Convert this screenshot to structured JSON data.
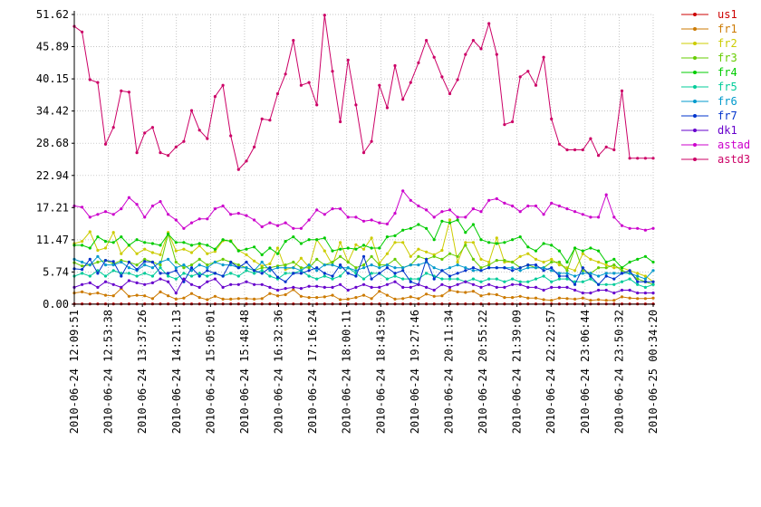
{
  "chart_data": {
    "type": "line",
    "grid": true,
    "legend_position": "right",
    "ylim": [
      0,
      51.62
    ],
    "y_ticks": [
      "0.00",
      "5.74",
      "11.47",
      "17.21",
      "22.94",
      "28.68",
      "34.42",
      "40.15",
      "45.89",
      "51.62"
    ],
    "x_ticks": [
      "2010-06-24 12:09:51",
      "2010-06-24 12:53:38",
      "2010-06-24 13:37:26",
      "2010-06-24 14:21:13",
      "2010-06-24 15:05:01",
      "2010-06-24 15:48:48",
      "2010-06-24 16:32:36",
      "2010-06-24 17:16:24",
      "2010-06-24 18:00:11",
      "2010-06-24 18:43:59",
      "2010-06-24 19:27:46",
      "2010-06-24 20:11:34",
      "2010-06-24 20:55:22",
      "2010-06-24 21:39:09",
      "2010-06-24 22:22:57",
      "2010-06-24 23:06:44",
      "2010-06-24 23:50:32",
      "2010-06-25 00:34:20"
    ],
    "series": [
      {
        "name": "us1",
        "color": "#cc0000",
        "values": [
          0.05,
          0.05,
          0.05,
          0.05,
          0.05,
          0.05,
          0.05,
          0.05,
          0.05,
          0.05,
          0.05,
          0.05,
          0.05,
          0.05,
          0.05,
          0.05,
          0.05,
          0.05,
          0.05,
          0.05,
          0.05,
          0.05,
          0.05,
          0.05,
          0.05,
          0.05,
          0.05,
          0.05,
          0.05,
          0.05,
          0.05,
          0.05,
          0.05,
          0.05,
          0.05,
          0.05,
          0.05,
          0.05,
          0.05,
          0.05,
          0.05,
          0.05,
          0.05,
          0.05,
          0.05,
          0.05,
          0.05,
          0.05,
          0.05,
          0.05,
          0.05,
          0.05,
          0.05,
          0.05,
          0.05,
          0.05,
          0.05,
          0.05,
          0.05,
          0.05,
          0.05,
          0.05,
          0.05,
          0.05,
          0.05,
          0.05,
          0.05,
          0.05,
          0.05,
          0.05,
          0.05,
          0.05,
          0.05,
          0.05,
          0.05
        ]
      },
      {
        "name": "fr1",
        "color": "#cc7a00",
        "values": [
          2.0,
          2.2,
          1.8,
          2.0,
          1.6,
          1.5,
          2.8,
          1.4,
          1.6,
          1.5,
          1.0,
          2.2,
          1.5,
          0.9,
          1.1,
          1.9,
          1.2,
          0.8,
          1.4,
          0.9,
          0.9,
          1.0,
          1.0,
          0.9,
          1.0,
          1.9,
          1.5,
          1.7,
          2.6,
          1.4,
          1.2,
          1.2,
          1.3,
          1.6,
          0.8,
          0.9,
          1.2,
          1.6,
          1.0,
          2.3,
          1.6,
          0.9,
          1.0,
          1.3,
          1.0,
          1.8,
          1.4,
          1.5,
          2.5,
          2.2,
          2.1,
          2.3,
          1.5,
          1.8,
          1.7,
          1.2,
          1.2,
          1.4,
          1.1,
          1.1,
          0.8,
          0.7,
          1.1,
          1.0,
          0.9,
          1.1,
          0.7,
          0.8,
          0.7,
          0.7,
          1.3,
          1.1,
          1.0,
          1.0,
          1.1
        ]
      },
      {
        "name": "fr2",
        "color": "#cccc00",
        "values": [
          10.8,
          11.2,
          12.9,
          9.6,
          10.0,
          12.8,
          9.0,
          10.5,
          9.0,
          9.8,
          9.2,
          8.8,
          12.8,
          9.5,
          9.8,
          9.2,
          10.4,
          9.0,
          9.4,
          11.3,
          11.3,
          9.6,
          8.8,
          7.7,
          6.8,
          7.2,
          10.0,
          6.2,
          6.5,
          8.2,
          6.6,
          11.5,
          9.5,
          7.0,
          11.0,
          7.5,
          10.6,
          9.8,
          11.8,
          7.3,
          9.0,
          11.0,
          11.0,
          8.5,
          9.8,
          9.3,
          8.8,
          9.6,
          15.0,
          7.5,
          11.0,
          11.0,
          8.0,
          7.5,
          11.8,
          7.5,
          7.5,
          8.5,
          9.0,
          8.0,
          7.5,
          8.0,
          7.0,
          6.5,
          6.0,
          9.0,
          8.0,
          7.5,
          7.0,
          6.5,
          6.5,
          6.0,
          5.5,
          5.0,
          4.0
        ]
      },
      {
        "name": "fr3",
        "color": "#66cc00",
        "values": [
          7.4,
          6.8,
          7.0,
          7.5,
          7.8,
          7.2,
          7.8,
          7.5,
          7.0,
          8.0,
          7.5,
          7.0,
          12.5,
          7.5,
          6.5,
          7.0,
          8.0,
          7.0,
          7.5,
          8.0,
          7.5,
          7.0,
          6.5,
          6.0,
          6.5,
          6.5,
          6.8,
          7.0,
          7.5,
          6.5,
          6.5,
          8.0,
          7.0,
          7.5,
          8.5,
          7.5,
          6.5,
          7.0,
          8.5,
          7.0,
          7.0,
          8.0,
          6.5,
          7.0,
          8.5,
          8.0,
          8.5,
          8.0,
          9.0,
          8.5,
          10.5,
          8.0,
          6.5,
          7.0,
          7.8,
          7.8,
          7.5,
          6.5,
          7.0,
          6.5,
          6.5,
          7.5,
          7.5,
          6.0,
          10.0,
          6.0,
          5.5,
          6.5,
          6.5,
          7.0,
          6.0,
          5.5,
          4.5,
          4.0,
          3.5
        ]
      },
      {
        "name": "fr4",
        "color": "#00cc00",
        "values": [
          10.5,
          10.5,
          10.0,
          12.0,
          11.2,
          11.0,
          12.0,
          10.5,
          11.5,
          11.0,
          10.8,
          10.5,
          12.5,
          11.0,
          11.0,
          10.5,
          10.8,
          10.5,
          9.8,
          11.5,
          11.2,
          9.5,
          9.8,
          10.2,
          8.8,
          10.0,
          9.0,
          11.2,
          12.0,
          10.8,
          11.5,
          11.5,
          11.8,
          9.5,
          9.8,
          10.0,
          9.8,
          10.5,
          10.0,
          10.0,
          12.0,
          12.2,
          13.2,
          13.5,
          14.2,
          13.5,
          11.5,
          14.8,
          14.5,
          15.0,
          12.8,
          14.2,
          11.5,
          11.0,
          10.8,
          11.0,
          11.5,
          12.0,
          10.2,
          9.5,
          10.8,
          10.5,
          9.5,
          7.5,
          10.0,
          9.5,
          10.0,
          9.5,
          7.5,
          8.0,
          6.5,
          7.5,
          8.0,
          8.5,
          7.5
        ]
      },
      {
        "name": "fr5",
        "color": "#00cc99",
        "values": [
          5.0,
          5.5,
          5.0,
          6.0,
          5.0,
          6.0,
          5.5,
          5.5,
          5.0,
          5.5,
          5.0,
          6.5,
          5.0,
          4.5,
          5.5,
          5.0,
          5.5,
          5.0,
          5.5,
          5.0,
          5.5,
          5.0,
          6.0,
          5.5,
          6.0,
          5.0,
          4.5,
          5.5,
          5.5,
          6.0,
          5.0,
          4.5,
          5.0,
          4.5,
          5.0,
          6.5,
          5.5,
          4.5,
          5.5,
          5.5,
          4.5,
          5.0,
          4.5,
          4.5,
          4.5,
          5.5,
          5.0,
          4.5,
          4.5,
          4.5,
          4.0,
          4.5,
          4.0,
          4.5,
          4.5,
          4.0,
          4.5,
          4.0,
          4.0,
          4.5,
          5.0,
          4.0,
          4.5,
          4.5,
          4.0,
          4.0,
          4.5,
          3.5,
          3.5,
          3.5,
          4.0,
          4.5,
          3.5,
          3.0,
          3.5
        ]
      },
      {
        "name": "fr6",
        "color": "#0099cc",
        "values": [
          8.0,
          7.5,
          7.0,
          8.5,
          7.0,
          7.0,
          7.5,
          6.5,
          6.0,
          7.0,
          6.5,
          7.5,
          8.0,
          6.5,
          7.0,
          6.0,
          7.0,
          6.5,
          7.5,
          7.0,
          7.0,
          6.5,
          6.5,
          6.0,
          7.5,
          6.0,
          6.5,
          6.5,
          6.5,
          6.0,
          7.0,
          6.0,
          7.0,
          7.0,
          6.5,
          6.5,
          6.0,
          6.5,
          7.0,
          6.5,
          7.0,
          6.5,
          6.5,
          7.0,
          7.0,
          7.5,
          6.5,
          6.0,
          6.5,
          7.0,
          6.5,
          6.0,
          6.0,
          6.5,
          6.5,
          6.5,
          6.5,
          6.0,
          6.5,
          6.5,
          6.5,
          6.0,
          5.5,
          5.5,
          5.0,
          5.5,
          5.5,
          5.0,
          5.5,
          5.5,
          5.5,
          5.5,
          5.0,
          4.5,
          6.0
        ]
      },
      {
        "name": "fr7",
        "color": "#0033cc",
        "values": [
          6.3,
          6.2,
          8.0,
          5.5,
          7.8,
          7.6,
          5.0,
          7.5,
          6.2,
          7.6,
          7.5,
          5.5,
          5.5,
          6.0,
          4.0,
          6.5,
          5.0,
          6.0,
          5.5,
          5.0,
          7.5,
          6.5,
          7.5,
          6.0,
          5.5,
          6.5,
          4.8,
          4.0,
          5.5,
          5.5,
          6.0,
          6.5,
          5.5,
          5.0,
          7.0,
          5.5,
          5.0,
          8.5,
          4.5,
          5.5,
          6.5,
          5.5,
          6.0,
          4.0,
          3.5,
          8.0,
          4.5,
          6.0,
          5.0,
          5.5,
          6.0,
          6.5,
          6.0,
          6.5,
          6.5,
          6.5,
          6.0,
          6.5,
          7.0,
          7.0,
          6.0,
          6.5,
          5.0,
          5.0,
          3.5,
          6.5,
          5.0,
          3.5,
          5.0,
          4.5,
          5.5,
          6.0,
          4.0,
          4.0,
          4.0
        ]
      },
      {
        "name": "dk1",
        "color": "#6600cc",
        "values": [
          3.0,
          3.5,
          3.8,
          3.0,
          4.0,
          3.5,
          3.0,
          4.2,
          3.8,
          3.5,
          3.8,
          4.5,
          4.0,
          2.0,
          4.5,
          3.5,
          3.0,
          4.0,
          4.5,
          3.0,
          3.5,
          3.5,
          4.0,
          3.5,
          3.5,
          3.0,
          2.5,
          2.8,
          3.0,
          2.8,
          3.2,
          3.2,
          3.0,
          3.0,
          3.5,
          2.5,
          3.0,
          3.5,
          3.0,
          3.0,
          3.5,
          4.0,
          3.0,
          3.0,
          3.5,
          3.0,
          2.5,
          3.5,
          3.0,
          3.5,
          4.0,
          3.5,
          3.0,
          3.5,
          3.0,
          3.0,
          3.5,
          3.5,
          3.0,
          3.0,
          2.5,
          3.0,
          3.0,
          3.0,
          2.5,
          2.0,
          2.0,
          2.5,
          2.5,
          2.0,
          2.5,
          2.5,
          2.0,
          2.0,
          2.0
        ]
      },
      {
        "name": "astad",
        "color": "#cc00cc",
        "values": [
          17.5,
          17.3,
          15.5,
          16.0,
          16.5,
          16.0,
          17.0,
          19.0,
          17.8,
          15.5,
          17.5,
          18.3,
          16.0,
          15.0,
          13.5,
          14.5,
          15.2,
          15.2,
          17.0,
          17.5,
          16.0,
          16.2,
          15.8,
          15.0,
          13.8,
          14.5,
          14.0,
          14.5,
          13.5,
          13.5,
          15.0,
          16.8,
          16.0,
          17.0,
          17.0,
          15.5,
          15.5,
          14.8,
          15.0,
          14.5,
          14.3,
          16.2,
          20.2,
          18.5,
          17.5,
          16.8,
          15.5,
          16.5,
          16.8,
          15.5,
          15.5,
          17.0,
          16.5,
          18.5,
          18.8,
          18.0,
          17.5,
          16.5,
          17.5,
          17.5,
          16.0,
          18.0,
          17.5,
          17.0,
          16.5,
          16.0,
          15.5,
          15.5,
          19.5,
          15.5,
          14.0,
          13.5,
          13.5,
          13.2,
          13.5
        ]
      },
      {
        "name": "astd3",
        "color": "#cc0066",
        "values": [
          49.5,
          48.5,
          40.0,
          39.5,
          28.5,
          31.5,
          38.0,
          37.8,
          27.0,
          30.5,
          31.5,
          27.0,
          26.5,
          28.0,
          29.0,
          34.5,
          31.0,
          29.5,
          37.0,
          39.0,
          30.0,
          24.0,
          25.5,
          28.0,
          33.0,
          32.8,
          37.5,
          41.0,
          47.0,
          39.0,
          39.5,
          35.5,
          51.5,
          41.5,
          32.5,
          43.5,
          35.5,
          27.0,
          29.0,
          39.0,
          35.0,
          42.5,
          36.5,
          39.5,
          43.0,
          47.0,
          44.0,
          40.5,
          37.5,
          40.0,
          44.5,
          47.0,
          45.5,
          50.0,
          44.5,
          32.0,
          32.5,
          40.5,
          41.5,
          39.0,
          44.0,
          33.0,
          28.5,
          27.5,
          27.5,
          27.5,
          29.5,
          26.5,
          28.0,
          27.5,
          38.0,
          26.0,
          26.0,
          26.0,
          26.0
        ]
      }
    ]
  }
}
